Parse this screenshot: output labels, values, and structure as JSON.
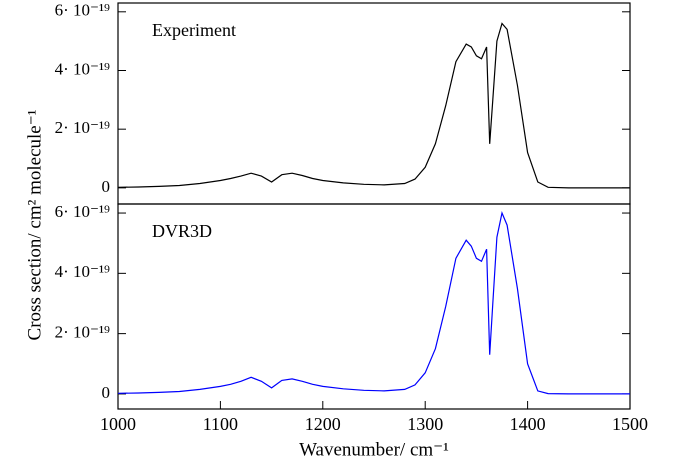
{
  "chart_data": [
    {
      "type": "line",
      "annotation": "Experiment",
      "x": [
        1000,
        1020,
        1040,
        1060,
        1080,
        1100,
        1110,
        1120,
        1130,
        1140,
        1150,
        1160,
        1170,
        1180,
        1190,
        1200,
        1220,
        1240,
        1260,
        1280,
        1290,
        1300,
        1310,
        1320,
        1330,
        1340,
        1345,
        1350,
        1355,
        1360,
        1363,
        1366,
        1370,
        1375,
        1380,
        1390,
        1400,
        1410,
        1420,
        1440,
        1460,
        1480,
        1500
      ],
      "series": [
        {
          "name": "Experiment",
          "color": "#000000",
          "values": [
            2e-21,
            3e-21,
            5e-21,
            8e-21,
            1.5e-20,
            2.5e-20,
            3.2e-20,
            4e-20,
            5e-20,
            4e-20,
            2e-20,
            4.5e-20,
            5e-20,
            4.2e-20,
            3.2e-20,
            2.5e-20,
            1.7e-20,
            1.2e-20,
            1e-20,
            1.5e-20,
            3e-20,
            7e-20,
            1.5e-19,
            2.8e-19,
            4.3e-19,
            4.9e-19,
            4.8e-19,
            4.5e-19,
            4.4e-19,
            4.8e-19,
            1.5e-19,
            3e-19,
            5e-19,
            5.6e-19,
            5.4e-19,
            3.5e-19,
            1.2e-19,
            2e-20,
            2e-21,
            0,
            0,
            0,
            0
          ]
        }
      ],
      "xlim": [
        1000,
        1500
      ],
      "ylim": [
        -5.5e-20,
        6.3e-19
      ],
      "yticks": [
        0,
        {
          "value": 2e-19,
          "label": "2· 10⁻¹⁹"
        },
        {
          "value": 4e-19,
          "label": "4· 10⁻¹⁹"
        },
        {
          "value": 6e-19,
          "label": "6· 10⁻¹⁹"
        }
      ]
    },
    {
      "type": "line",
      "annotation": "DVR3D",
      "x": [
        1000,
        1020,
        1040,
        1060,
        1080,
        1100,
        1110,
        1120,
        1130,
        1140,
        1150,
        1160,
        1170,
        1180,
        1190,
        1200,
        1220,
        1240,
        1260,
        1280,
        1290,
        1300,
        1310,
        1320,
        1330,
        1340,
        1345,
        1350,
        1355,
        1360,
        1363,
        1366,
        1370,
        1375,
        1380,
        1390,
        1400,
        1410,
        1420,
        1440,
        1460,
        1480,
        1500
      ],
      "series": [
        {
          "name": "DVR3D",
          "color": "#0000ff",
          "values": [
            2e-21,
            3e-21,
            5e-21,
            8e-21,
            1.5e-20,
            2.5e-20,
            3.2e-20,
            4.2e-20,
            5.5e-20,
            4.2e-20,
            2e-20,
            4.5e-20,
            5e-20,
            4.2e-20,
            3.2e-20,
            2.5e-20,
            1.7e-20,
            1.2e-20,
            1e-20,
            1.5e-20,
            3e-20,
            7e-20,
            1.5e-19,
            2.9e-19,
            4.5e-19,
            5.1e-19,
            4.9e-19,
            4.5e-19,
            4.4e-19,
            4.8e-19,
            1.3e-19,
            3e-19,
            5.2e-19,
            6e-19,
            5.6e-19,
            3.5e-19,
            1e-19,
            1e-20,
            1e-21,
            0,
            0,
            0,
            0
          ]
        }
      ],
      "xlim": [
        1000,
        1500
      ],
      "ylim": [
        -5e-20,
        6.3e-19
      ],
      "yticks": [
        0,
        {
          "value": 2e-19,
          "label": "2· 10⁻¹⁹"
        },
        {
          "value": 4e-19,
          "label": "4· 10⁻¹⁹"
        },
        {
          "value": 6e-19,
          "label": "6· 10⁻¹⁹"
        }
      ],
      "xticks": [
        1000,
        1100,
        1200,
        1300,
        1400,
        1500
      ],
      "xlabel": "Wavenumber/ cm⁻¹"
    }
  ],
  "ylabel": "Cross section/ cm² molecule⁻¹"
}
